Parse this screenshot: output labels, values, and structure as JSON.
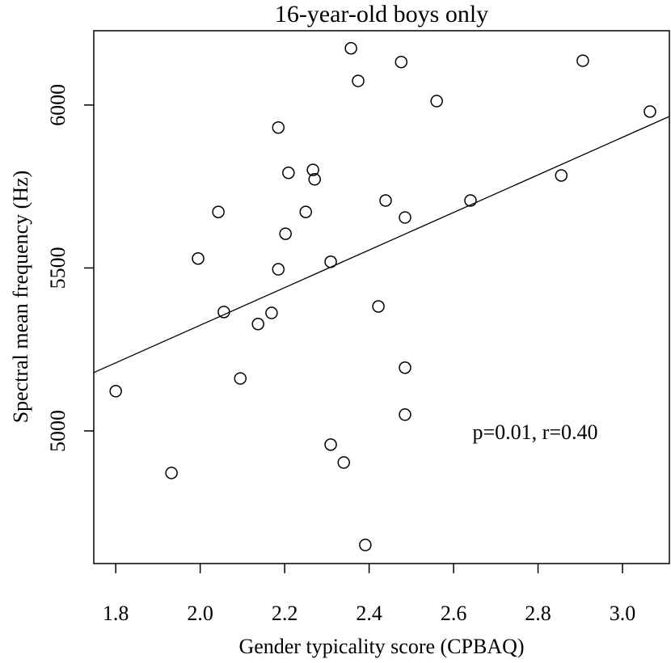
{
  "chart_data": {
    "type": "scatter",
    "title": "16-year-old boys only",
    "x_label": "Gender typicality score (CPBAQ)",
    "y_label": "Spectral mean frequency (Hz)",
    "annotation": "p=0.01, r=0.40",
    "xlim": [
      1.748,
      3.111
    ],
    "ylim": [
      4593,
      6228
    ],
    "xticks": [
      1.8,
      {
        "value": 2,
        "label": "2.0"
      },
      2.2,
      2.4,
      2.6,
      2.8,
      {
        "value": 3,
        "label": "3.0"
      }
    ],
    "yticks": [
      5000,
      5500,
      6000
    ],
    "color": "#000000",
    "x": [
      1.8,
      1.932,
      1.995,
      2.043,
      2.056,
      2.095,
      2.137,
      2.169,
      2.185,
      2.185,
      2.202,
      2.209,
      2.25,
      2.267,
      2.271,
      2.309,
      2.309,
      2.34,
      2.357,
      2.374,
      2.391,
      2.422,
      2.439,
      2.476,
      2.485,
      2.485,
      2.485,
      2.56,
      2.64,
      2.855,
      2.906,
      3.065
    ],
    "values": [
      5122,
      4871,
      5529,
      5672,
      5365,
      5161,
      5328,
      5362,
      5931,
      5496,
      5605,
      5792,
      5672,
      5801,
      5772,
      5519,
      4958,
      4903,
      6174,
      6074,
      4650,
      5382,
      5707,
      6132,
      5655,
      5194,
      5050,
      6012,
      5707,
      5784,
      6136,
      5980
    ],
    "fit_line": {
      "x": [
        1.748,
        3.111
      ],
      "values": [
        5179,
        5965
      ]
    }
  }
}
